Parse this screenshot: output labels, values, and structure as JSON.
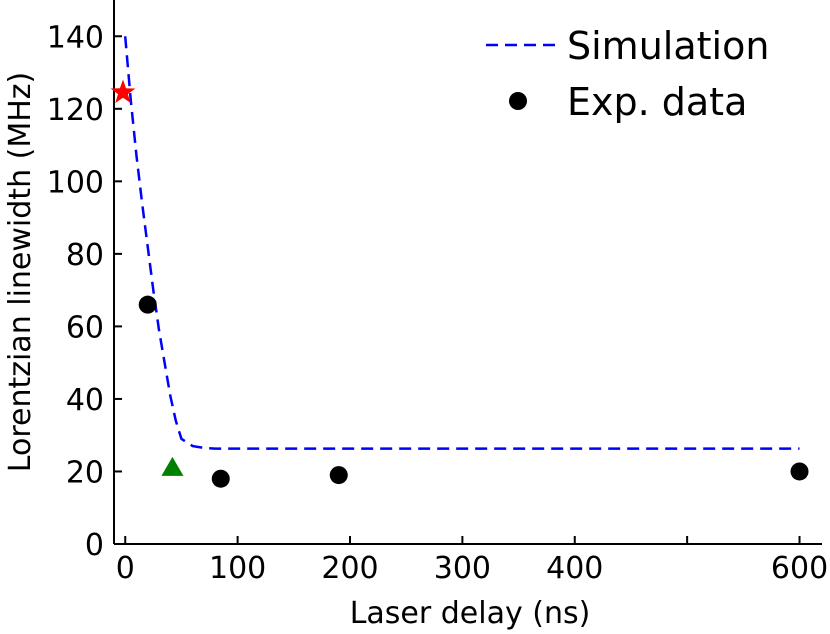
{
  "chart_data": {
    "type": "scatter",
    "xlabel": "Laser delay (ns)",
    "ylabel": "Lorentzian linewidth (MHz)",
    "xlim": [
      -10,
      620
    ],
    "ylim": [
      0,
      150
    ],
    "xticks": [
      0,
      100,
      200,
      300,
      400,
      600
    ],
    "xticks_minor": [
      500
    ],
    "yticks": [
      0,
      20,
      40,
      60,
      80,
      100,
      120,
      140
    ],
    "legend_position": "top-right",
    "series": [
      {
        "name": "Simulation",
        "style": "dashed-line",
        "color": "#0000ff",
        "x": [
          0,
          5,
          10,
          15,
          20,
          25,
          30,
          35,
          40,
          45,
          50,
          60,
          70,
          80,
          100,
          150,
          200,
          300,
          400,
          500,
          600
        ],
        "y": [
          140,
          122,
          107,
          94,
          82,
          70,
          59,
          50,
          41,
          34,
          29,
          27,
          26.5,
          26.3,
          26.3,
          26.3,
          26.3,
          26.3,
          26.3,
          26.3,
          26.3
        ]
      },
      {
        "name": "Exp. data",
        "style": "circle",
        "color": "#000000",
        "x": [
          20,
          85,
          190,
          600
        ],
        "y": [
          66,
          18,
          19,
          20
        ]
      }
    ],
    "markers": [
      {
        "shape": "star",
        "color": "#ff0000",
        "x": -2,
        "y": 124.5
      },
      {
        "shape": "triangle",
        "color": "#008000",
        "x": 42,
        "y": 21
      }
    ]
  }
}
